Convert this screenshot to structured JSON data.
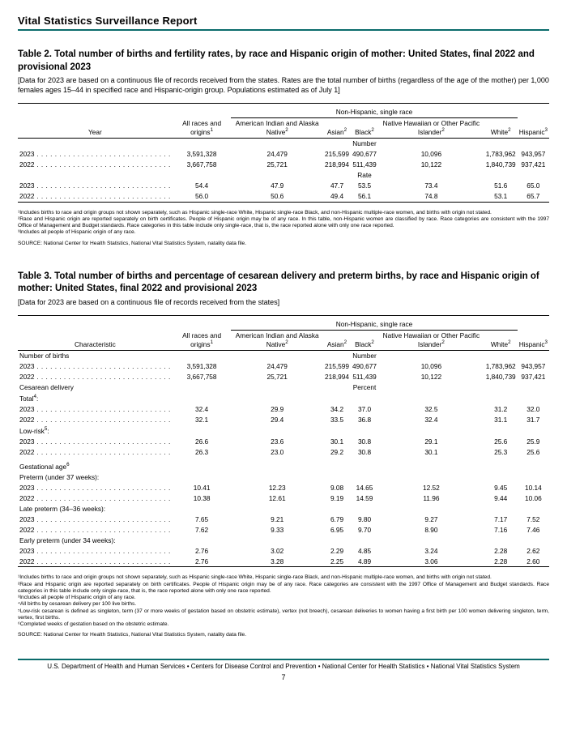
{
  "header": {
    "title": "Vital Statistics Surveillance Report"
  },
  "table2": {
    "title": "Table 2. Total number of births and fertility rates, by race and Hispanic origin of mother: United States, final 2022 and provisional 2023",
    "sub": "[Data for 2023 are based on a continuous file of records received from the states. Rates are the total number of births (regardless of the age of the mother) per 1,000 females ages 15–44 in specified race and Hispanic-origin group. Populations estimated as of July 1]",
    "group_header": "Non-Hispanic, single race",
    "cols": {
      "year": "Year",
      "all": "All races and origins",
      "all_sup": "1",
      "aian": "American Indian and Alaska Native",
      "aian_sup": "2",
      "asian": "Asian",
      "asian_sup": "2",
      "black": "Black",
      "black_sup": "2",
      "nhpi": "Native Hawaiian or Other Pacific Islander",
      "nhpi_sup": "2",
      "white": "White",
      "white_sup": "2",
      "hisp": "Hispanic",
      "hisp_sup": "3"
    },
    "sections": {
      "number": "Number",
      "rate": "Rate"
    },
    "rows_number": [
      {
        "year": "2023",
        "all": "3,591,328",
        "aian": "24,479",
        "asian": "215,599",
        "black": "490,677",
        "nhpi": "10,096",
        "white": "1,783,962",
        "hisp": "943,957"
      },
      {
        "year": "2022",
        "all": "3,667,758",
        "aian": "25,721",
        "asian": "218,994",
        "black": "511,439",
        "nhpi": "10,122",
        "white": "1,840,739",
        "hisp": "937,421"
      }
    ],
    "rows_rate": [
      {
        "year": "2023",
        "all": "54.4",
        "aian": "47.9",
        "asian": "47.7",
        "black": "53.5",
        "nhpi": "73.4",
        "white": "51.6",
        "hisp": "65.0"
      },
      {
        "year": "2022",
        "all": "56.0",
        "aian": "50.6",
        "asian": "49.4",
        "black": "56.1",
        "nhpi": "74.8",
        "white": "53.1",
        "hisp": "65.7"
      }
    ],
    "footnotes": [
      "¹Includes births to race and origin groups not shown separately, such as Hispanic single-race White, Hispanic single-race Black, and non-Hispanic multiple-race women, and births with origin not stated.",
      "²Race and Hispanic origin are reported separately on birth certificates. People of Hispanic origin may be of any race. In this table, non-Hispanic women are classified by race. Race categories are consistent with the 1997 Office of Management and Budget standards. Race categories in this table include only single-race, that is, the race reported alone with only one race reported.",
      "³Includes all people of Hispanic origin of any race."
    ],
    "source": "SOURCE: National Center for Health Statistics, National Vital Statistics System, natality data file."
  },
  "table3": {
    "title": "Table 3. Total number of births and percentage of cesarean delivery and preterm births, by race and Hispanic origin of mother: United States, final 2022 and provisional 2023",
    "sub": "[Data for 2023 are based on a continuous file of records received from the states]",
    "group_header": "Non-Hispanic, single race",
    "cols": {
      "char": "Characteristic",
      "all": "All races and origins",
      "all_sup": "1",
      "aian": "American Indian and Alaska Native",
      "aian_sup": "2",
      "asian": "Asian",
      "asian_sup": "2",
      "black": "Black",
      "black_sup": "2",
      "nhpi": "Native Hawaiian or Other Pacific Islander",
      "nhpi_sup": "2",
      "white": "White",
      "white_sup": "2",
      "hisp": "Hispanic",
      "hisp_sup": "3"
    },
    "section_labels": {
      "nbirths": "Number of births",
      "number": "Number",
      "cesarean": "Cesarean delivery",
      "percent": "Percent",
      "total": "Total",
      "total_sup": "4",
      "lowrisk": "Low-risk",
      "lowrisk_sup": "5",
      "gest": "Gestational age",
      "gest_sup": "6",
      "preterm": "Preterm (under 37 weeks):",
      "latepre": "Late preterm (34–36 weeks):",
      "earlypre": "Early preterm (under 34 weeks):"
    },
    "rows": {
      "births": [
        {
          "y": "2023",
          "all": "3,591,328",
          "aian": "24,479",
          "asian": "215,599",
          "black": "490,677",
          "nhpi": "10,096",
          "white": "1,783,962",
          "hisp": "943,957"
        },
        {
          "y": "2022",
          "all": "3,667,758",
          "aian": "25,721",
          "asian": "218,994",
          "black": "511,439",
          "nhpi": "10,122",
          "white": "1,840,739",
          "hisp": "937,421"
        }
      ],
      "total": [
        {
          "y": "2023",
          "all": "32.4",
          "aian": "29.9",
          "asian": "34.2",
          "black": "37.0",
          "nhpi": "32.5",
          "white": "31.2",
          "hisp": "32.0"
        },
        {
          "y": "2022",
          "all": "32.1",
          "aian": "29.4",
          "asian": "33.5",
          "black": "36.8",
          "nhpi": "32.4",
          "white": "31.1",
          "hisp": "31.7"
        }
      ],
      "lowrisk": [
        {
          "y": "2023",
          "all": "26.6",
          "aian": "23.6",
          "asian": "30.1",
          "black": "30.8",
          "nhpi": "29.1",
          "white": "25.6",
          "hisp": "25.9"
        },
        {
          "y": "2022",
          "all": "26.3",
          "aian": "23.0",
          "asian": "29.2",
          "black": "30.8",
          "nhpi": "30.1",
          "white": "25.3",
          "hisp": "25.6"
        }
      ],
      "preterm": [
        {
          "y": "2023",
          "all": "10.41",
          "aian": "12.23",
          "asian": "9.08",
          "black": "14.65",
          "nhpi": "12.52",
          "white": "9.45",
          "hisp": "10.14"
        },
        {
          "y": "2022",
          "all": "10.38",
          "aian": "12.61",
          "asian": "9.19",
          "black": "14.59",
          "nhpi": "11.96",
          "white": "9.44",
          "hisp": "10.06"
        }
      ],
      "latepre": [
        {
          "y": "2023",
          "all": "7.65",
          "aian": "9.21",
          "asian": "6.79",
          "black": "9.80",
          "nhpi": "9.27",
          "white": "7.17",
          "hisp": "7.52"
        },
        {
          "y": "2022",
          "all": "7.62",
          "aian": "9.33",
          "asian": "6.95",
          "black": "9.70",
          "nhpi": "8.90",
          "white": "7.16",
          "hisp": "7.46"
        }
      ],
      "earlypre": [
        {
          "y": "2023",
          "all": "2.76",
          "aian": "3.02",
          "asian": "2.29",
          "black": "4.85",
          "nhpi": "3.24",
          "white": "2.28",
          "hisp": "2.62"
        },
        {
          "y": "2022",
          "all": "2.76",
          "aian": "3.28",
          "asian": "2.25",
          "black": "4.89",
          "nhpi": "3.06",
          "white": "2.28",
          "hisp": "2.60"
        }
      ]
    },
    "footnotes": [
      "¹Includes births to race and origin groups not shown separately, such as Hispanic single-race White, Hispanic single-race Black, and non-Hispanic multiple-race women, and births with origin not stated.",
      "²Race and Hispanic origin are reported separately on birth certificates. People of Hispanic origin may be of any race. Race categories are consistent with the 1997 Office of Management and Budget standards. Race categories in this table include only single-race, that is, the race reported alone with only one race reported.",
      "³Includes all people of Hispanic origin of any race.",
      "⁴All births by cesarean delivery per 100 live births.",
      "⁵Low-risk cesarean is defined as singleton, term (37 or more weeks of gestation based on obstetric estimate), vertex (not breech), cesarean deliveries to women having a first birth per 100 women delivering singleton, term, vertex, first births.",
      "⁶Completed weeks of gestation based on the obstetric estimate."
    ],
    "source": "SOURCE: National Center for Health Statistics, National Vital Statistics System, natality data file."
  },
  "footer": {
    "text": "U.S. Department of Health and Human Services • Centers for Disease Control and Prevention • National Center for Health Statistics • National Vital Statistics System",
    "page": "7"
  }
}
